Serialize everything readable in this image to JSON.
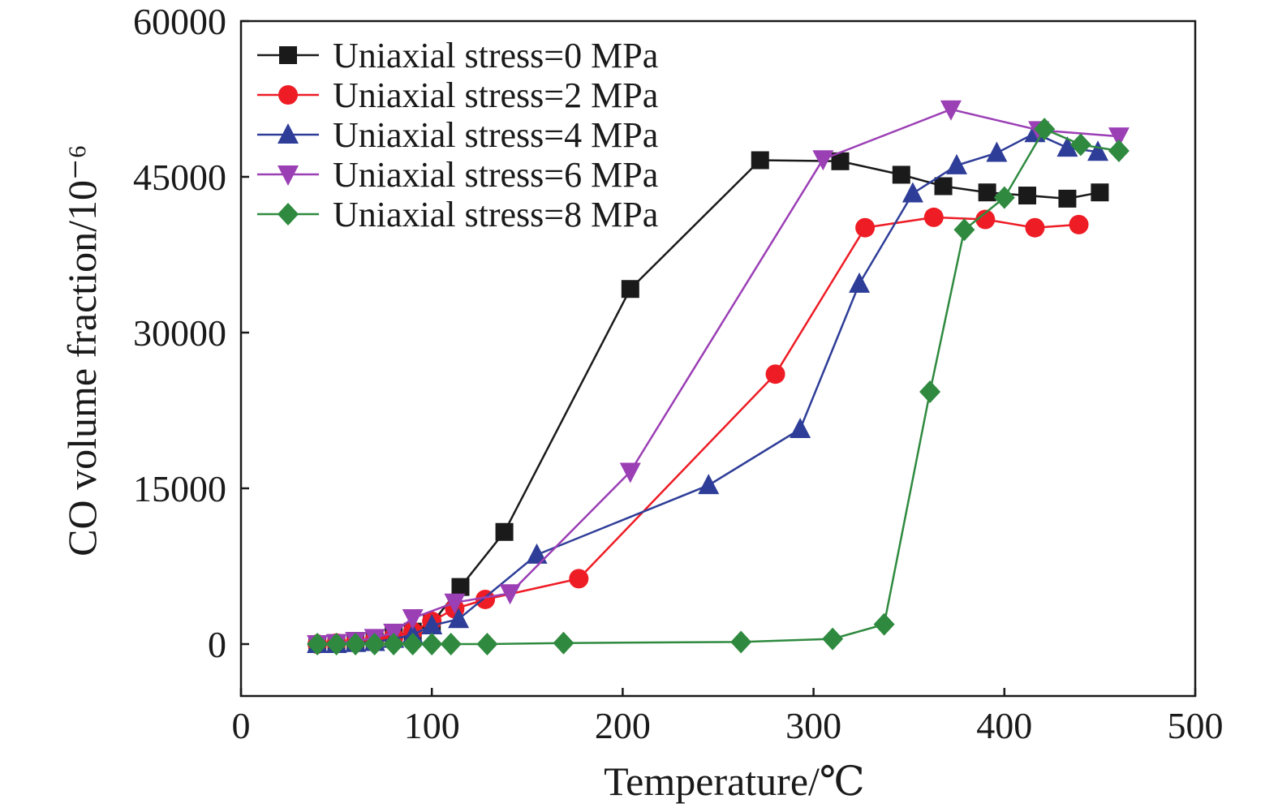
{
  "chart_data": {
    "type": "line",
    "xlabel": "Temperature/℃",
    "ylabel": "CO volume fraction/10⁻⁶",
    "xlim": [
      0,
      500
    ],
    "ylim": [
      -5000,
      60000
    ],
    "x_ticks": [
      0,
      100,
      200,
      300,
      400,
      500
    ],
    "y_ticks": [
      0,
      15000,
      30000,
      45000,
      60000
    ],
    "x_tick_labels": [
      "0",
      "100",
      "200",
      "300",
      "400",
      "500"
    ],
    "y_tick_labels": [
      "0",
      "15000",
      "30000",
      "45000",
      "60000"
    ],
    "grid": false,
    "legend_position": "top-left",
    "series": [
      {
        "name": "Uniaxial stress=0 MPa",
        "color": "#1a1a1a",
        "marker": "square",
        "points": [
          [
            40,
            0
          ],
          [
            50,
            100
          ],
          [
            60,
            300
          ],
          [
            70,
            500
          ],
          [
            80,
            800
          ],
          [
            90,
            1200
          ],
          [
            100,
            2000
          ],
          [
            115,
            5500
          ],
          [
            138,
            10800
          ],
          [
            204,
            34200
          ],
          [
            272,
            46600
          ],
          [
            314,
            46500
          ],
          [
            346,
            45200
          ],
          [
            368,
            44100
          ],
          [
            391,
            43500
          ],
          [
            412,
            43200
          ],
          [
            433,
            42900
          ],
          [
            450,
            43500
          ]
        ]
      },
      {
        "name": "Uniaxial stress=2 MPa",
        "color": "#ee1c25",
        "marker": "circle",
        "points": [
          [
            40,
            0
          ],
          [
            50,
            100
          ],
          [
            60,
            200
          ],
          [
            70,
            400
          ],
          [
            80,
            700
          ],
          [
            90,
            1200
          ],
          [
            100,
            2200
          ],
          [
            112,
            3400
          ],
          [
            128,
            4300
          ],
          [
            177,
            6300
          ],
          [
            280,
            26000
          ],
          [
            327,
            40100
          ],
          [
            363,
            41100
          ],
          [
            390,
            40900
          ],
          [
            416,
            40100
          ],
          [
            439,
            40400
          ]
        ]
      },
      {
        "name": "Uniaxial stress=4 MPa",
        "color": "#2e3d98",
        "marker": "triangle-up",
        "points": [
          [
            40,
            0
          ],
          [
            50,
            0
          ],
          [
            60,
            100
          ],
          [
            70,
            200
          ],
          [
            80,
            500
          ],
          [
            90,
            900
          ],
          [
            100,
            1800
          ],
          [
            114,
            2400
          ],
          [
            155,
            8600
          ],
          [
            245,
            15300
          ],
          [
            293,
            20700
          ],
          [
            324,
            34700
          ],
          [
            352,
            43400
          ],
          [
            375,
            46100
          ],
          [
            396,
            47300
          ],
          [
            416,
            49200
          ],
          [
            433,
            47800
          ],
          [
            449,
            47400
          ]
        ]
      },
      {
        "name": "Uniaxial stress=6 MPa",
        "color": "#9b3fb5",
        "marker": "triangle-down",
        "points": [
          [
            40,
            0
          ],
          [
            50,
            100
          ],
          [
            60,
            300
          ],
          [
            70,
            600
          ],
          [
            80,
            1100
          ],
          [
            90,
            2500
          ],
          [
            112,
            4000
          ],
          [
            141,
            4900
          ],
          [
            204,
            16600
          ],
          [
            305,
            46700
          ],
          [
            372,
            51500
          ],
          [
            418,
            49500
          ],
          [
            460,
            48900
          ]
        ]
      },
      {
        "name": "Uniaxial stress=8 MPa",
        "color": "#2f8a3f",
        "marker": "diamond",
        "points": [
          [
            40,
            0
          ],
          [
            50,
            0
          ],
          [
            60,
            0
          ],
          [
            70,
            0
          ],
          [
            80,
            0
          ],
          [
            90,
            0
          ],
          [
            100,
            0
          ],
          [
            110,
            0
          ],
          [
            129,
            0
          ],
          [
            169,
            100
          ],
          [
            262,
            200
          ],
          [
            310,
            500
          ],
          [
            337,
            1900
          ],
          [
            361,
            24300
          ],
          [
            379,
            39900
          ],
          [
            400,
            43000
          ],
          [
            421,
            49600
          ],
          [
            440,
            48100
          ],
          [
            460,
            47500
          ]
        ]
      }
    ]
  }
}
